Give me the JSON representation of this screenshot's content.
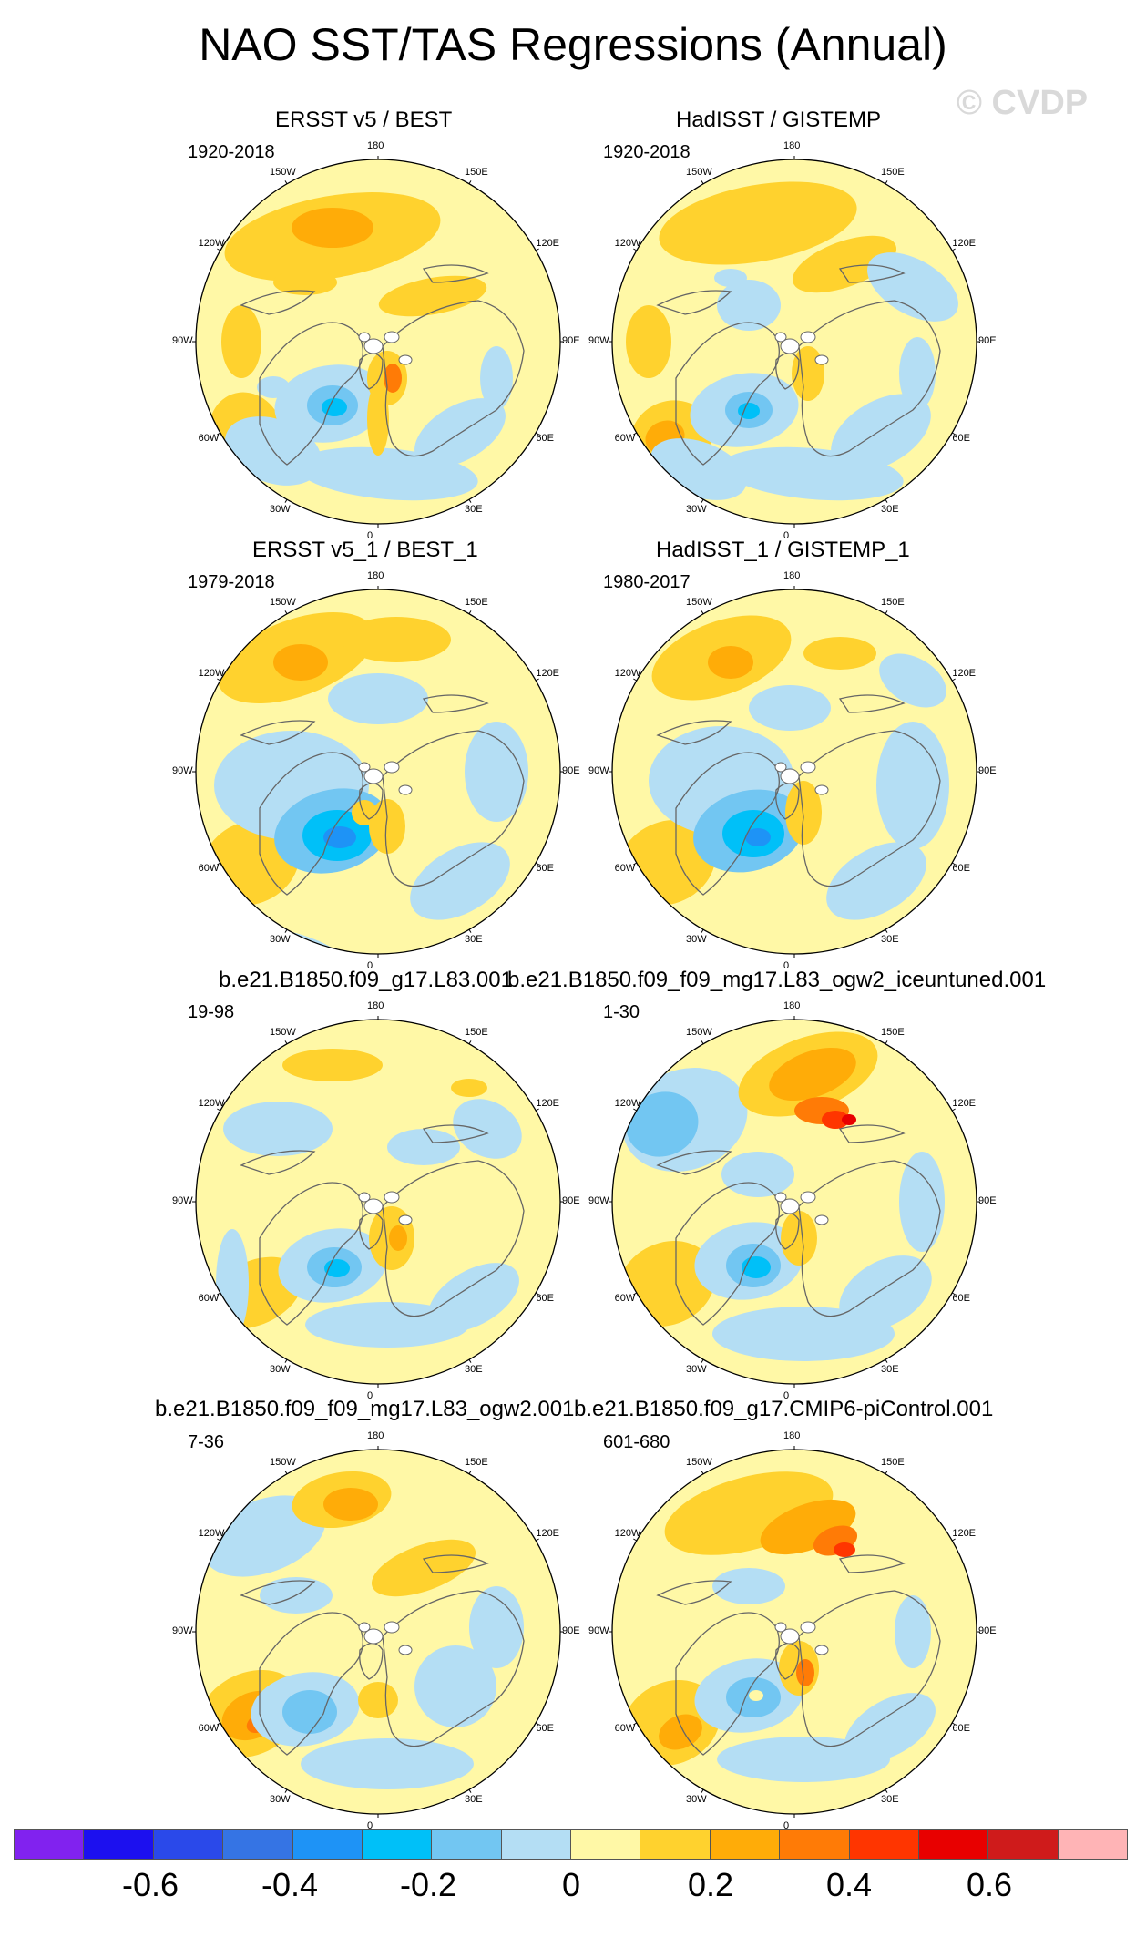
{
  "title": "NAO SST/TAS Regressions (Annual)",
  "watermark": "© CVDP",
  "colors": {
    "levels": [
      "#8122ef",
      "#1c10ef",
      "#2a49ea",
      "#3574e4",
      "#1e93f6",
      "#00c0f8",
      "#72c6f2",
      "#b4def4",
      "#fff8a6",
      "#ffd22e",
      "#ffac08",
      "#ff7b06",
      "#ff3500",
      "#e80000",
      "#cf1b1b",
      "#ffb4b6"
    ],
    "coast": "#666666",
    "land_white": "#ffffff"
  },
  "colorbar": {
    "tick_labels": [
      "-0.6",
      "-0.4",
      "-0.2",
      "0",
      "0.2",
      "0.4",
      "0.6"
    ]
  },
  "longitude_labels": [
    "180",
    "150E",
    "120E",
    "90E",
    "60E",
    "30E",
    "0",
    "30W",
    "60W",
    "90W",
    "120W",
    "150W"
  ],
  "panels": [
    {
      "title": "ERSST v5 / BEST",
      "years": "1920-2018",
      "pattern": "obs_a"
    },
    {
      "title": "HadISST / GISTEMP",
      "years": "1920-2018",
      "pattern": "obs_b"
    },
    {
      "title": "ERSST v5_1 / BEST_1",
      "years": "1979-2018",
      "pattern": "obs_c"
    },
    {
      "title": "HadISST_1 / GISTEMP_1",
      "years": "1980-2017",
      "pattern": "obs_d"
    },
    {
      "title": "b.e21.B1850.f09_g17.L83.001",
      "years": "19-98",
      "pattern": "model_a"
    },
    {
      "title": "b.e21.B1850.f09_f09_mg17.L83_ogw2_iceuntuned.001",
      "years": "1-30",
      "pattern": "model_b"
    },
    {
      "title": "b.e21.B1850.f09_f09_mg17.L83_ogw2.001",
      "years": "7-36",
      "pattern": "model_c"
    },
    {
      "title": "b.e21.B1850.f09_g17.CMIP6-piControl.001",
      "years": "601-680",
      "pattern": "model_d"
    }
  ]
}
